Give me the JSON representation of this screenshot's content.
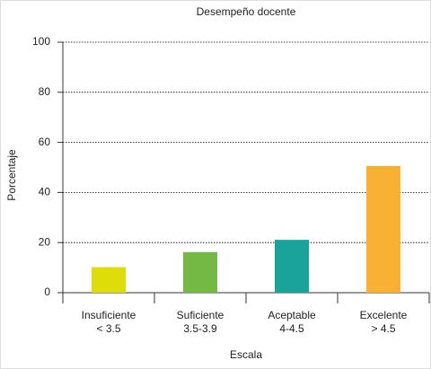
{
  "chart_data": {
    "type": "bar",
    "title": "Desempeño docente",
    "x_label": "Escala",
    "y_label": "Porcentaje",
    "categories": [
      [
        "Insuficiente",
        "< 3.5"
      ],
      [
        "Suficiente",
        "3.5-3.9"
      ],
      [
        "Aceptable",
        "4-4.5"
      ],
      [
        "Excelente",
        "> 4.5"
      ]
    ],
    "values": [
      10.2,
      16.2,
      21.1,
      50.6
    ],
    "colors": [
      "#dfdc0c",
      "#74b944",
      "#1aa39a",
      "#f8b133"
    ],
    "ylim": [
      0,
      100
    ],
    "yticks": [
      0,
      20,
      40,
      60,
      80,
      100
    ],
    "grid": true
  }
}
